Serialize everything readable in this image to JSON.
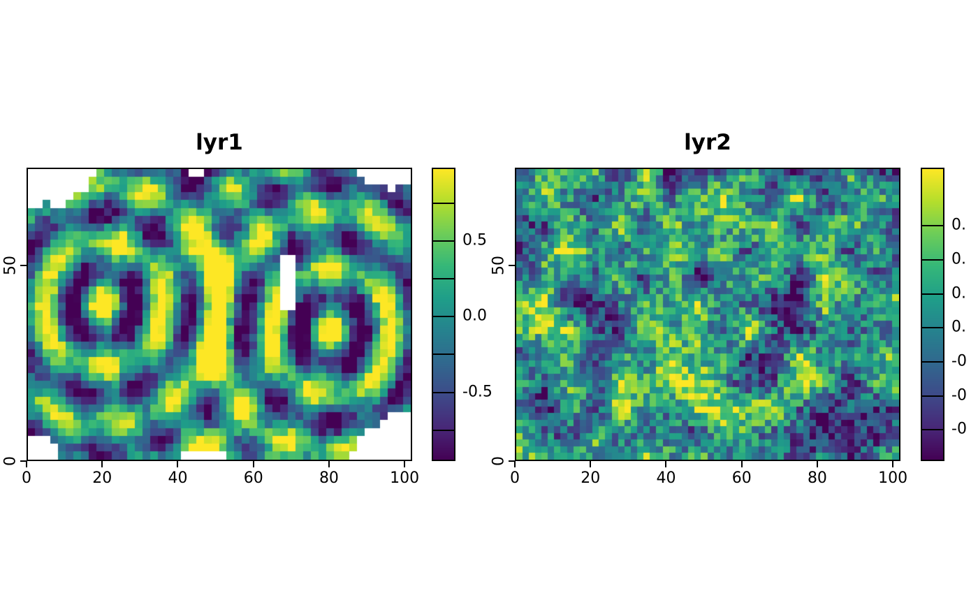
{
  "figure": {
    "background": "#ffffff",
    "text_color": "#000000",
    "na_color": "#ffffff",
    "colormap_name": "viridis",
    "viridis_low": "#440154",
    "viridis_mid": "#21918c",
    "viridis_high": "#fde725"
  },
  "chart_data": [
    {
      "type": "heatmap",
      "title": "lyr1",
      "xlabel": "",
      "ylabel": "",
      "xlim": [
        0,
        102
      ],
      "ylim": [
        0,
        75
      ],
      "x_ticks": [
        0,
        20,
        40,
        60,
        80,
        100
      ],
      "x_tick_labels": [
        "0",
        "20",
        "40",
        "60",
        "80",
        "100"
      ],
      "y_ticks": [
        0,
        50
      ],
      "y_tick_labels": [
        "0",
        "50"
      ],
      "colormap": "viridis",
      "grid": false,
      "legend_position": "right",
      "value_range": [
        -0.95,
        0.97
      ],
      "colorbar_ticks": [
        {
          "value": 0.75,
          "label": ""
        },
        {
          "value": 0.5,
          "label": "0.5"
        },
        {
          "value": 0.25,
          "label": ""
        },
        {
          "value": 0.0,
          "label": "0.0"
        },
        {
          "value": -0.25,
          "label": ""
        },
        {
          "value": -0.5,
          "label": "-0.5"
        },
        {
          "value": -0.75,
          "label": ""
        }
      ],
      "pattern_id": "rings",
      "pattern": "two-centre concentric interference rings (dark purple and yellow arcs on teal background) with ragged white NA patches at the corners, top/bottom centre and a small gap near x=69,y=46"
    },
    {
      "type": "heatmap",
      "title": "lyr2",
      "xlabel": "",
      "ylabel": "",
      "xlim": [
        0,
        102
      ],
      "ylim": [
        0,
        75
      ],
      "x_ticks": [
        0,
        20,
        40,
        60,
        80,
        100
      ],
      "x_tick_labels": [
        "0",
        "20",
        "40",
        "60",
        "80",
        "100"
      ],
      "y_ticks": [
        0,
        50
      ],
      "y_tick_labels": [
        "0",
        "50"
      ],
      "colormap": "viridis",
      "grid": false,
      "legend_position": "right",
      "value_range": [
        -0.78,
        0.93
      ],
      "colorbar_ticks": [
        {
          "value": 0.6,
          "label": "0."
        },
        {
          "value": 0.4,
          "label": "0."
        },
        {
          "value": 0.2,
          "label": "0."
        },
        {
          "value": 0.0,
          "label": "0."
        },
        {
          "value": -0.2,
          "label": "-0"
        },
        {
          "value": -0.4,
          "label": "-0"
        },
        {
          "value": -0.6,
          "label": "-0"
        }
      ],
      "colorbar_labels_truncated_at_image_edge": true,
      "pattern_id": "noise",
      "pattern": "spatially correlated random noise, mostly teal/green with scattered yellow and dark purple specks, full raster coverage (no NA)"
    }
  ]
}
